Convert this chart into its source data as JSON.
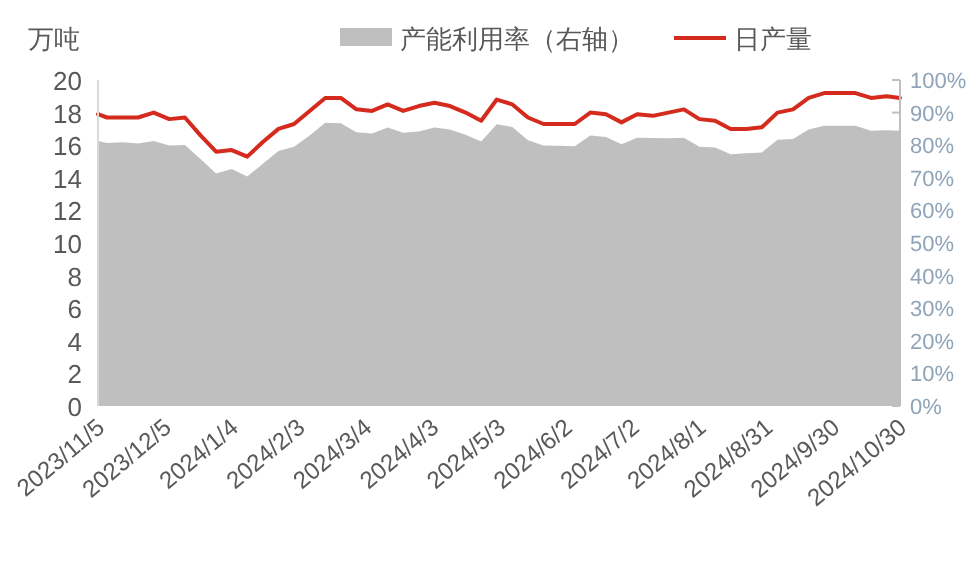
{
  "chart_data": {
    "type": "line",
    "ylabel": "万吨",
    "legend": "top",
    "grid": false,
    "x": [
      "2023-11-05",
      "2023-11-09",
      "2023-11-16",
      "2023-11-23",
      "2023-11-30",
      "2023-12-07",
      "2023-12-14",
      "2023-12-21",
      "2023-12-28",
      "2024-01-04",
      "2024-01-11",
      "2024-01-18",
      "2024-01-25",
      "2024-02-01",
      "2024-02-08",
      "2024-02-15",
      "2024-02-22",
      "2024-02-29",
      "2024-03-07",
      "2024-03-14",
      "2024-03-21",
      "2024-03-28",
      "2024-04-04",
      "2024-04-11",
      "2024-04-18",
      "2024-04-25",
      "2024-05-02",
      "2024-05-09",
      "2024-05-16",
      "2024-05-23",
      "2024-05-30",
      "2024-06-06",
      "2024-06-13",
      "2024-06-20",
      "2024-06-27",
      "2024-07-04",
      "2024-07-11",
      "2024-07-18",
      "2024-07-25",
      "2024-08-01",
      "2024-08-08",
      "2024-08-15",
      "2024-08-22",
      "2024-08-29",
      "2024-09-05",
      "2024-09-12",
      "2024-09-19",
      "2024-09-26",
      "2024-10-03",
      "2024-10-10",
      "2024-10-17",
      "2024-10-24",
      "2024-10-30"
    ],
    "series": [
      {
        "name": "产能利用率（右轴）",
        "type": "area",
        "axis": "y2",
        "color": "#bfbfbf",
        "values": [
          81.3,
          80.7,
          80.9,
          80.5,
          81.3,
          79.9,
          80.1,
          75.8,
          71.3,
          72.7,
          70.4,
          74.3,
          78.2,
          79.5,
          83.0,
          86.9,
          86.7,
          84.0,
          83.6,
          85.4,
          83.8,
          84.2,
          85.4,
          84.8,
          83.2,
          81.1,
          86.4,
          85.6,
          81.5,
          79.9,
          79.8,
          79.7,
          83.0,
          82.5,
          80.3,
          82.3,
          82.2,
          82.1,
          82.3,
          79.5,
          79.3,
          77.2,
          77.5,
          77.8,
          81.7,
          81.9,
          84.8,
          86.0,
          86.0,
          86.0,
          84.4,
          84.6,
          84.4
        ]
      },
      {
        "name": "日产量",
        "color": "#d52b1e",
        "values": [
          17.9,
          17.7,
          17.7,
          17.7,
          18.0,
          17.6,
          17.7,
          16.6,
          15.6,
          15.7,
          15.3,
          16.2,
          17.0,
          17.3,
          18.1,
          18.9,
          18.9,
          18.2,
          18.1,
          18.5,
          18.1,
          18.4,
          18.6,
          18.4,
          18.0,
          17.5,
          18.8,
          18.5,
          17.7,
          17.3,
          17.3,
          17.3,
          18.0,
          17.9,
          17.4,
          17.9,
          17.8,
          18.0,
          18.2,
          17.6,
          17.5,
          17.0,
          17.0,
          17.1,
          18.0,
          18.2,
          18.9,
          19.2,
          19.2,
          19.2,
          18.9,
          19.0,
          18.9
        ]
      }
    ],
    "xlim": [
      "2023-11-05",
      "2024-10-30"
    ],
    "xticks": [
      {
        "value": "2023-11-05",
        "label": "2023/11/5"
      },
      {
        "value": "2023-12-05",
        "label": "2023/12/5"
      },
      {
        "value": "2024-01-04",
        "label": "2024/1/4"
      },
      {
        "value": "2024-02-03",
        "label": "2024/2/3"
      },
      {
        "value": "2024-03-04",
        "label": "2024/3/4"
      },
      {
        "value": "2024-04-03",
        "label": "2024/4/3"
      },
      {
        "value": "2024-05-03",
        "label": "2024/5/3"
      },
      {
        "value": "2024-06-02",
        "label": "2024/6/2"
      },
      {
        "value": "2024-07-02",
        "label": "2024/7/2"
      },
      {
        "value": "2024-08-01",
        "label": "2024/8/1"
      },
      {
        "value": "2024-08-31",
        "label": "2024/8/31"
      },
      {
        "value": "2024-09-30",
        "label": "2024/9/30"
      },
      {
        "value": "2024-10-30",
        "label": "2024/10/30"
      }
    ],
    "ylim": [
      0,
      20
    ],
    "yticks": [
      0,
      2,
      4,
      6,
      8,
      10,
      12,
      14,
      16,
      18,
      20
    ],
    "y2lim": [
      0,
      100
    ],
    "y2ticks": [
      {
        "value": 0,
        "label": "0%"
      },
      {
        "value": 10,
        "label": "10%"
      },
      {
        "value": 20,
        "label": "20%"
      },
      {
        "value": 30,
        "label": "30%"
      },
      {
        "value": 40,
        "label": "40%"
      },
      {
        "value": 50,
        "label": "50%"
      },
      {
        "value": 60,
        "label": "60%"
      },
      {
        "value": 70,
        "label": "70%"
      },
      {
        "value": 80,
        "label": "80%"
      },
      {
        "value": 90,
        "label": "90%"
      },
      {
        "value": 100,
        "label": "100%"
      }
    ]
  }
}
